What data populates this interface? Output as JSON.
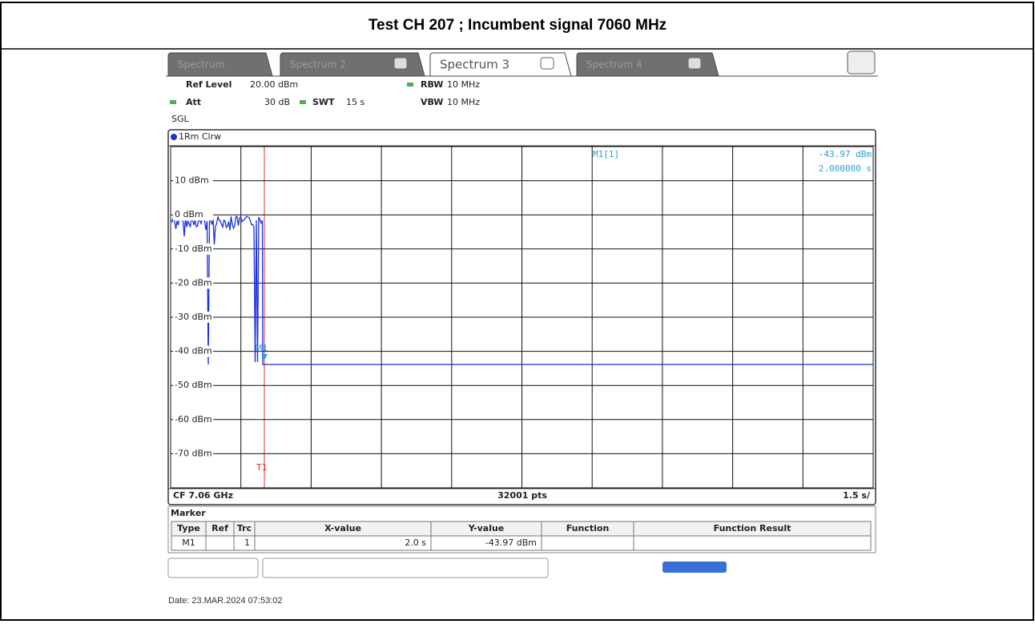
{
  "header": {
    "title": "Test CH 207 ; Incumbent signal 7060 MHz"
  },
  "tabs": [
    "Spectrum",
    "Spectrum 2",
    "Spectrum 3",
    "Spectrum 4"
  ],
  "settings": {
    "ref_level_label": "Ref Level",
    "ref_level": "20.00 dBm",
    "att_label": "Att",
    "att": "30 dB",
    "swt_label": "SWT",
    "swt": "15 s",
    "rbw_label": "RBW",
    "rbw": "10 MHz",
    "vbw_label": "VBW",
    "vbw": "10 MHz",
    "mode": "SGL"
  },
  "trace_label": "1Rm Clrw",
  "y_labels": [
    "10 dBm",
    "0 dBm",
    "-10 dBm",
    "-20 dBm",
    "-30 dBm",
    "-40 dBm",
    "-50 dBm",
    "-60 dBm",
    "-70 dBm"
  ],
  "marker_readout": {
    "name": "M1[1]",
    "level": "-43.97 dBm",
    "time": "2.000000 s"
  },
  "marker_label": "M1",
  "trigger_label": "T1",
  "footer": {
    "cf": "CF 7.06 GHz",
    "points": "32001 pts",
    "sweep": "1.5 s/"
  },
  "marker_table": {
    "title": "Marker",
    "columns": [
      "Type",
      "Ref",
      "Trc",
      "X-value",
      "Y-value",
      "Function",
      "Function Result"
    ],
    "rows": [
      {
        "type": "M1",
        "trc": "1",
        "x_value": "2.0 s",
        "y_value": "-43.97 dBm"
      }
    ]
  },
  "date": "Date: 23.MAR.2024 07:53:02"
}
